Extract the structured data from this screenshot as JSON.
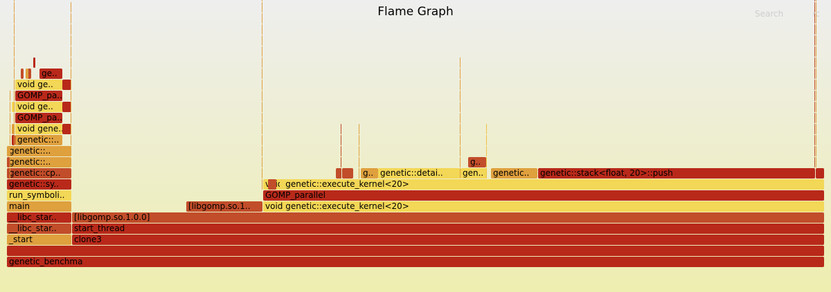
{
  "title": "Flame Graph",
  "search_label": "Search",
  "ic_label": "ic",
  "palette": [
    "#b8291a",
    "#c24d2a",
    "#dfa03e",
    "#f3d756",
    "#e2b846",
    "#f0c248"
  ],
  "frames": [
    {
      "label": "genetic_benchma",
      "c": 0
    },
    {
      "label": "",
      "c": 0
    },
    {
      "label": "_start",
      "c": 2
    },
    {
      "label": "__libc_star..",
      "c": 1
    },
    {
      "label": "__libc_star..",
      "c": 0
    },
    {
      "label": "main",
      "c": 2
    },
    {
      "label": "run_symboli..",
      "c": 3
    },
    {
      "label": "genetic::sy..",
      "c": 0
    },
    {
      "label": "genetic::cp..",
      "c": 1
    },
    {
      "label": "genetic::..",
      "c": 2
    },
    {
      "label": "genetic::..",
      "c": 2
    },
    {
      "label": "genetic::..",
      "c": 2
    },
    {
      "label": "void gene..",
      "c": 3
    },
    {
      "label": "GOMP_pa..",
      "c": 0
    },
    {
      "label": "void ge..",
      "c": 3
    },
    {
      "label": "GOMP_pa..",
      "c": 0
    },
    {
      "label": "void ge..",
      "c": 3
    },
    {
      "label": "ge..",
      "c": 0
    },
    {
      "label": "clone3",
      "c": 0
    },
    {
      "label": "start_thread",
      "c": 0
    },
    {
      "label": "[libgomp.so.1.0.0]",
      "c": 1
    },
    {
      "label": "void genetic::execute_kernel<20>",
      "c": 3
    },
    {
      "label": "GOMP_parallel",
      "c": 0
    },
    {
      "label": "void genetic::execute_kernel<20>",
      "c": 3
    },
    {
      "label": "[libgomp.so.1..",
      "c": 1
    },
    {
      "label": "genetic::stack<float, 20>::push",
      "c": 0
    },
    {
      "label": "genetic::detai..",
      "c": 3
    },
    {
      "label": "gen..",
      "c": 3
    },
    {
      "label": "genetic..",
      "c": 2
    },
    {
      "label": "g..",
      "c": 2
    },
    {
      "label": "g..",
      "c": 1
    },
    {
      "label": "",
      "c": 1
    },
    {
      "label": "",
      "c": 1
    },
    {
      "label": "",
      "c": 1
    },
    {
      "label": "",
      "c": 0
    },
    {
      "label": "",
      "c": 0
    },
    {
      "label": "",
      "c": 0
    },
    {
      "label": "",
      "c": 0
    },
    {
      "label": "",
      "c": 0
    },
    {
      "label": "",
      "c": 1
    },
    {
      "label": "",
      "c": 2
    },
    {
      "label": "",
      "c": 3
    },
    {
      "label": "",
      "c": 2
    },
    {
      "label": "",
      "c": 0
    },
    {
      "label": "",
      "c": 1
    },
    {
      "label": "",
      "c": 1
    },
    {
      "label": "",
      "c": 2
    },
    {
      "label": "",
      "c": 3
    }
  ]
}
